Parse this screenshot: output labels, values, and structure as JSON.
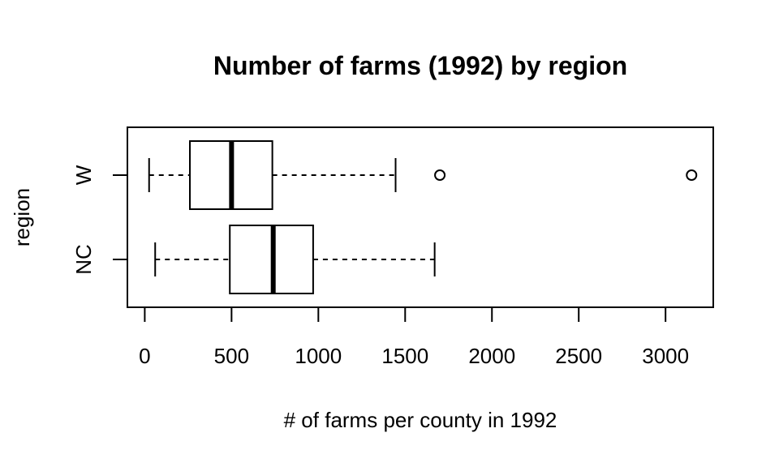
{
  "chart_data": {
    "type": "boxplot",
    "orientation": "horizontal",
    "title": "Number of farms (1992) by region",
    "xlabel": "# of farms per county in 1992",
    "ylabel": "region",
    "xlim": [
      -100,
      3275
    ],
    "xticks": [
      0,
      500,
      1000,
      1500,
      2000,
      2500,
      3000
    ],
    "xtick_labels": [
      "0",
      "500",
      "1000",
      "1500",
      "2000",
      "2500",
      "3000"
    ],
    "grid": false,
    "categories": [
      "NC",
      "W"
    ],
    "boxes": [
      {
        "category": "NC",
        "whisker_low": 60,
        "q1": 490,
        "median": 740,
        "q3": 970,
        "whisker_high": 1670,
        "outliers": []
      },
      {
        "category": "W",
        "whisker_low": 25,
        "q1": 260,
        "median": 500,
        "q3": 735,
        "whisker_high": 1445,
        "outliers": [
          1700,
          3150
        ]
      }
    ],
    "colors": {
      "stroke": "#000000",
      "fill": "#ffffff"
    }
  }
}
